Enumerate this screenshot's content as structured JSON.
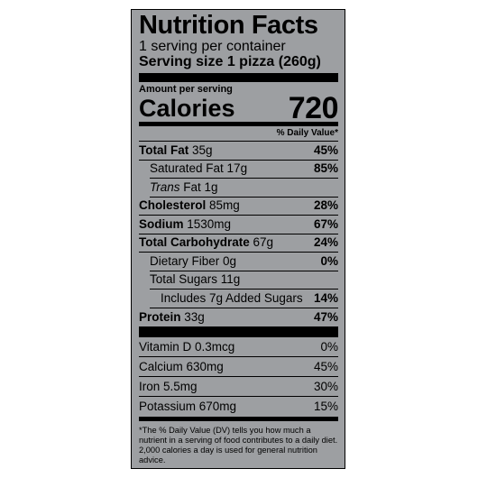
{
  "title": "Nutrition Facts",
  "servings_per_container": "1 serving per container",
  "serving_size_label": "Serving size",
  "serving_size_value": "1 pizza (260g)",
  "amount_per_serving": "Amount per serving",
  "calories_label": "Calories",
  "calories_value": "720",
  "dv_header": "% Daily Value*",
  "nutrients": {
    "total_fat": {
      "label": "Total Fat",
      "amount": "35g",
      "dv": "45%"
    },
    "saturated_fat": {
      "label": "Saturated Fat 17g",
      "dv": "85%"
    },
    "trans_fat": {
      "label_italic": "Trans",
      "label_rest": "Fat 1g"
    },
    "cholesterol": {
      "label": "Cholesterol",
      "amount": "85mg",
      "dv": "28%"
    },
    "sodium": {
      "label": "Sodium",
      "amount": "1530mg",
      "dv": "67%"
    },
    "total_carb": {
      "label": "Total Carbohydrate",
      "amount": "67g",
      "dv": "24%"
    },
    "dietary_fiber": {
      "label": "Dietary Fiber 0g",
      "dv": "0%"
    },
    "total_sugars": {
      "label": "Total Sugars 11g"
    },
    "added_sugars": {
      "label": "Includes 7g Added Sugars",
      "dv": "14%"
    },
    "protein": {
      "label": "Protein",
      "amount": "33g",
      "dv": "47%"
    }
  },
  "vitamins": [
    {
      "label": "Vitamin D 0.3mcg",
      "dv": "0%"
    },
    {
      "label": "Calcium 630mg",
      "dv": "45%"
    },
    {
      "label": "Iron 5.5mg",
      "dv": "30%"
    },
    {
      "label": "Potassium 670mg",
      "dv": "15%"
    }
  ],
  "footnote": "*The % Daily Value (DV) tells you how much a nutrient in a serving of food contributes to a daily diet. 2,000 calories a day is used for general nutrition advice.",
  "colors": {
    "panel_bg": "#9d9fa2",
    "ink": "#000000"
  }
}
